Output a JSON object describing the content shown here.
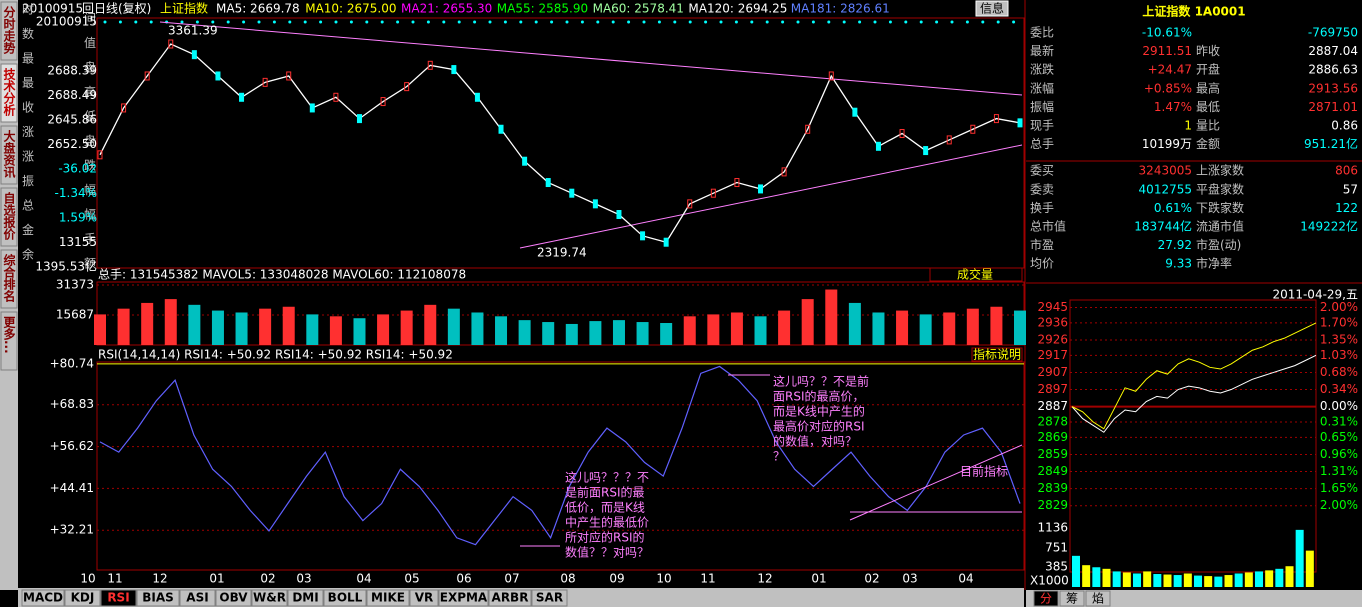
{
  "tabs_left": [
    "分时走势",
    "技术分析",
    "大盘资讯",
    "自选报价",
    "综合排名",
    "更多..."
  ],
  "header": {
    "date": "20100915",
    "mode": "回日线(复权)",
    "index": "上证指数",
    "ma": [
      "MA5: 2669.78",
      "MA10: 2675.00",
      "MA21: 2655.30",
      "MA55: 2585.90",
      "MA60: 2578.41",
      "MA120: 2694.25",
      "MA181: 2826.61"
    ],
    "info_button": "信息"
  },
  "info": [
    {
      "label": "时",
      "value": "20100915",
      "label2": "间"
    },
    {
      "label": "数",
      "value": "",
      "label2": "值"
    },
    {
      "label": "最",
      "value": "2688.39",
      "label2": "盘"
    },
    {
      "label": "最",
      "value": "2688.49",
      "label2": "高"
    },
    {
      "label": "收",
      "value": "2645.86",
      "label2": "低"
    },
    {
      "label": "涨",
      "value": "2652.50",
      "label2": "盘"
    },
    {
      "label": "涨",
      "value": "-36.02",
      "label2": "跌"
    },
    {
      "label": "振",
      "value": "-1.34%",
      "label2": "幅"
    },
    {
      "label": "总",
      "value": "1.59%",
      "label2": "幅"
    },
    {
      "label": "金",
      "value": "13155",
      "label2": "手"
    },
    {
      "label": "余",
      "value": "1395.53亿",
      "label2": "额"
    }
  ],
  "price_chart": {
    "high_label": "3361.39",
    "low_label": "2319.74",
    "ylim": [
      2249,
      3422
    ],
    "close": [
      2780,
      3000,
      3150,
      3300,
      3250,
      3150,
      3050,
      3120,
      3150,
      3000,
      3050,
      2950,
      3030,
      3100,
      3200,
      3180,
      3050,
      2900,
      2750,
      2650,
      2600,
      2550,
      2500,
      2400,
      2370,
      2550,
      2600,
      2650,
      2620,
      2700,
      2900,
      3150,
      2980,
      2820,
      2880,
      2800,
      2850,
      2900,
      2950,
      2930
    ]
  },
  "volume_chart": {
    "header": "总手: 131545382  MAVOL5: 133048028  MAVOL60: 112108078",
    "button": "成交量",
    "ylim": [
      0,
      32942
    ],
    "yticks": [
      31373,
      15687
    ],
    "values": [
      16000,
      19000,
      22000,
      24000,
      21000,
      18000,
      17000,
      19000,
      20000,
      16000,
      15000,
      14000,
      16000,
      18000,
      21000,
      19000,
      17000,
      15000,
      13000,
      12000,
      11000,
      12500,
      13000,
      12000,
      11500,
      15000,
      16000,
      17000,
      15000,
      18000,
      24000,
      29000,
      22000,
      17000,
      18000,
      16000,
      17000,
      19000,
      20000,
      18000
    ]
  },
  "rsi_chart": {
    "header": "RSI(14,14,14)  RSI14: +50.92  RSI14: +50.92  RSI14: +50.92",
    "help": "指标说明",
    "ylim": [
      20.6,
      81.3
    ],
    "yticks": [
      {
        "value": 80.74,
        "label": "+80.74"
      },
      {
        "value": 68.83,
        "label": "+68.83"
      },
      {
        "value": 56.62,
        "label": "+56.62"
      },
      {
        "value": 44.41,
        "label": "+44.41"
      },
      {
        "value": 32.21,
        "label": "+32.21"
      }
    ],
    "values": [
      58,
      55,
      62,
      70,
      76,
      60,
      50,
      45,
      38,
      32,
      40,
      48,
      55,
      42,
      35,
      40,
      50,
      45,
      38,
      30,
      28,
      35,
      42,
      38,
      30,
      45,
      55,
      62,
      58,
      52,
      48,
      62,
      78,
      80,
      76,
      70,
      58,
      50,
      45,
      50,
      55,
      48,
      42,
      38,
      45,
      55,
      60,
      62,
      55,
      40
    ],
    "annotations": [
      [
        "这儿吗？？不是前",
        "面RSI的最高价，",
        "而是K线中产生的",
        "最高价对应的RSI",
        "的数值，对吗？",
        "？"
      ],
      [
        "这儿吗？？？不",
        "是前面RSI的最",
        "低价，而是K线",
        "中产生的最低价",
        "所对应的RSI的",
        "数值？？对吗？"
      ],
      [
        "目前指标"
      ]
    ]
  },
  "x_labels": [
    "10",
    "11",
    "12",
    "01",
    "02",
    "03",
    "04",
    "05",
    "06",
    "07",
    "08",
    "09",
    "10",
    "11",
    "12",
    "01",
    "02",
    "03",
    "04"
  ],
  "indicator_tabs": [
    "MACD",
    "KDJ",
    "RSI",
    "BIAS",
    "ASI",
    "OBV",
    "W&R",
    "DMI",
    "BOLL",
    "MIKE",
    "VR",
    "EXPMA",
    "ARBR",
    "SAR"
  ],
  "quote": {
    "title": "上证指数 1A0001",
    "rows": [
      [
        "委比",
        "-10.61%",
        "",
        "-769750"
      ],
      [
        "最新",
        "2911.51",
        "昨收",
        "2887.04"
      ],
      [
        "涨跌",
        "+24.47",
        "开盘",
        "2886.63"
      ],
      [
        "涨幅",
        "+0.85%",
        "最高",
        "2913.56"
      ],
      [
        "振幅",
        "1.47%",
        "最低",
        "2871.01"
      ],
      [
        "现手",
        "1",
        "量比",
        "0.86"
      ],
      [
        "总手",
        "10199万",
        "金额",
        "951.21亿"
      ],
      [
        "委买",
        "3243005",
        "上涨家数",
        "806"
      ],
      [
        "委卖",
        "4012755",
        "平盘家数",
        "57"
      ],
      [
        "换手",
        "0.61%",
        "下跌家数",
        "122"
      ],
      [
        "总市值",
        "183744亿",
        "流通市值",
        "149222亿"
      ],
      [
        "市盈",
        "27.92",
        "市盈(动)",
        ""
      ],
      [
        "均价",
        "9.33",
        "市净率",
        ""
      ]
    ]
  },
  "intraday": {
    "date": "2011-04-29,五",
    "ylim": [
      2826.5,
      2949.4
    ],
    "yticks": [
      2945,
      2936,
      2926,
      2917,
      2907,
      2897,
      2887,
      2878,
      2869,
      2859,
      2849,
      2839,
      2829
    ],
    "right_labels": [
      "2.00%",
      "1.70%",
      "1.35%",
      "1.03%",
      "0.68%",
      "0.34%",
      "0.00%",
      "0.31%",
      "0.65%",
      "0.96%",
      "1.31%",
      "1.65%",
      "2.00%"
    ],
    "series": [
      {
        "color": "#ffffff",
        "values": [
          2887,
          2880,
          2876,
          2872,
          2880,
          2885,
          2884,
          2890,
          2893,
          2892,
          2897,
          2899,
          2898,
          2896,
          2895,
          2897,
          2900,
          2903,
          2905,
          2907,
          2909,
          2911,
          2914,
          2917
        ]
      },
      {
        "color": "#ffff00",
        "values": [
          2887,
          2884,
          2878,
          2874,
          2886,
          2898,
          2896,
          2903,
          2908,
          2906,
          2912,
          2915,
          2913,
          2910,
          2909,
          2912,
          2916,
          2920,
          2922,
          2925,
          2927,
          2930,
          2933,
          2936
        ]
      }
    ],
    "vol_ylim": [
      0,
      1386
    ],
    "vol_yticks": [
      1136,
      751,
      385
    ],
    "vol_unit": "X1000",
    "volume": [
      600,
      420,
      380,
      350,
      300,
      280,
      260,
      300,
      250,
      240,
      230,
      260,
      220,
      210,
      200,
      230,
      260,
      280,
      300,
      320,
      350,
      400,
      1100,
      700
    ],
    "tabs": [
      "分",
      "筹",
      "焰"
    ]
  }
}
